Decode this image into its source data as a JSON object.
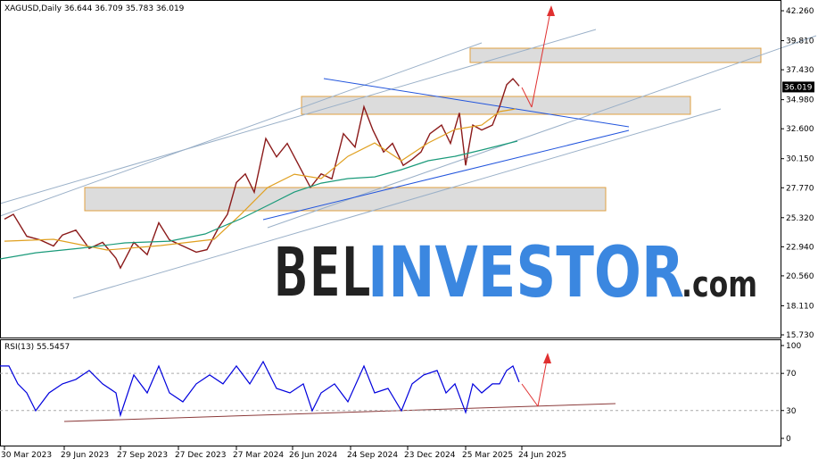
{
  "chart_data": [
    {
      "type": "line",
      "header": "XAGUSD,Daily  36.644 36.709 35.783 36.019",
      "last_price": {
        "value": 36.019,
        "label": "36.019"
      },
      "xlim": [
        0,
        875
      ],
      "ylim": [
        15.51,
        43.14
      ],
      "xticks": [
        {
          "value": 5,
          "label": "30 Mar 2023"
        },
        {
          "value": 72,
          "label": "29 Jun 2023"
        },
        {
          "value": 135,
          "label": "27 Sep 2023"
        },
        {
          "value": 200,
          "label": "27 Dec 2023"
        },
        {
          "value": 265,
          "label": "27 Mar 2024"
        },
        {
          "value": 328,
          "label": "26 Jun 2024"
        },
        {
          "value": 393,
          "label": "24 Sep 2024"
        },
        {
          "value": 457,
          "label": "23 Dec 2024"
        },
        {
          "value": 522,
          "label": "25 Mar 2025"
        },
        {
          "value": 585,
          "label": "24 Jun 2025"
        }
      ],
      "yticks": [
        {
          "value": 42.26,
          "label": "42.260"
        },
        {
          "value": 39.81,
          "label": "39.810"
        },
        {
          "value": 37.43,
          "label": "37.430"
        },
        {
          "value": 34.98,
          "label": "34.980"
        },
        {
          "value": 32.6,
          "label": "32.600"
        },
        {
          "value": 30.15,
          "label": "30.150"
        },
        {
          "value": 27.77,
          "label": "27.770"
        },
        {
          "value": 25.32,
          "label": "25.320"
        },
        {
          "value": 22.94,
          "label": "22.940"
        },
        {
          "value": 20.56,
          "label": "20.560"
        },
        {
          "value": 18.11,
          "label": "18.110"
        },
        {
          "value": 15.73,
          "label": "15.730"
        }
      ],
      "series": [
        {
          "color": "#8b1a1a",
          "x": [
            5,
            15,
            30,
            45,
            60,
            70,
            85,
            100,
            115,
            130,
            135,
            150,
            165,
            178,
            190,
            205,
            220,
            232,
            245,
            255,
            265,
            275,
            285,
            298,
            310,
            322,
            335,
            348,
            360,
            372,
            385,
            398,
            408,
            418,
            430,
            440,
            452,
            462,
            472,
            482,
            495,
            505,
            515,
            522,
            530,
            540,
            552,
            560,
            568,
            575,
            582
          ],
          "values": [
            25.2,
            25.6,
            23.8,
            23.5,
            23.0,
            23.9,
            24.3,
            22.8,
            23.3,
            22.0,
            21.2,
            23.3,
            22.3,
            24.9,
            23.5,
            23.0,
            22.5,
            22.7,
            24.5,
            25.6,
            28.2,
            28.9,
            27.4,
            31.8,
            30.3,
            31.4,
            29.6,
            27.8,
            28.9,
            28.5,
            32.2,
            31.1,
            34.4,
            32.5,
            30.7,
            31.4,
            29.6,
            30.1,
            30.7,
            32.2,
            32.9,
            31.4,
            33.9,
            29.6,
            32.9,
            32.5,
            32.9,
            34.4,
            36.2,
            36.7,
            36.1
          ]
        },
        {
          "color": "#e0a020",
          "x": [
            5,
            60,
            120,
            180,
            240,
            270,
            300,
            330,
            360,
            390,
            420,
            450,
            480,
            510,
            540,
            560,
            578
          ],
          "values": [
            23.4,
            23.55,
            22.67,
            23.04,
            23.55,
            25.59,
            27.79,
            28.88,
            28.52,
            30.34,
            31.44,
            29.98,
            31.44,
            32.54,
            32.9,
            34.0,
            34.22
          ]
        },
        {
          "color": "#1a9a7a",
          "x": [
            0,
            40,
            90,
            140,
            190,
            230,
            270,
            300,
            330,
            360,
            390,
            420,
            450,
            480,
            510,
            540,
            580
          ],
          "values": [
            21.94,
            22.45,
            22.82,
            23.26,
            23.4,
            23.99,
            25.23,
            26.32,
            27.42,
            28.15,
            28.52,
            28.66,
            29.25,
            29.98,
            30.34,
            30.86,
            31.59
          ]
        }
      ]
    },
    {
      "type": "line",
      "header": "RSI(13) 55.5457",
      "xlim": [
        0,
        875
      ],
      "ylim": [
        -8.7,
        106.7
      ],
      "yticks": [
        100,
        70,
        30,
        0
      ],
      "series": [
        {
          "color": "#0000dd",
          "x": [
            0,
            10,
            20,
            30,
            40,
            55,
            70,
            85,
            100,
            115,
            130,
            135,
            150,
            165,
            178,
            190,
            205,
            220,
            235,
            250,
            265,
            280,
            295,
            310,
            325,
            340,
            350,
            360,
            375,
            390,
            408,
            420,
            435,
            450,
            462,
            475,
            490,
            500,
            510,
            522,
            530,
            540,
            552,
            560,
            568,
            575,
            582
          ],
          "values": [
            77.9,
            77.9,
            58.7,
            49,
            29.8,
            49,
            58.7,
            63.5,
            73.1,
            58.7,
            49,
            25,
            68.3,
            49,
            77.9,
            49,
            39.4,
            58.7,
            68.3,
            58.7,
            77.9,
            58.7,
            82.7,
            53.8,
            49,
            58.7,
            29.8,
            49,
            58.7,
            39.4,
            77.9,
            49,
            53.8,
            29.8,
            58.7,
            68.3,
            73.1,
            49,
            58.7,
            27.9,
            58.7,
            49,
            58.7,
            58.7,
            73.1,
            77.9,
            60.6
          ]
        }
      ]
    }
  ],
  "watermark": {
    "part1": "BEL",
    "part2": "INVESTOR",
    "part3": ".com"
  }
}
